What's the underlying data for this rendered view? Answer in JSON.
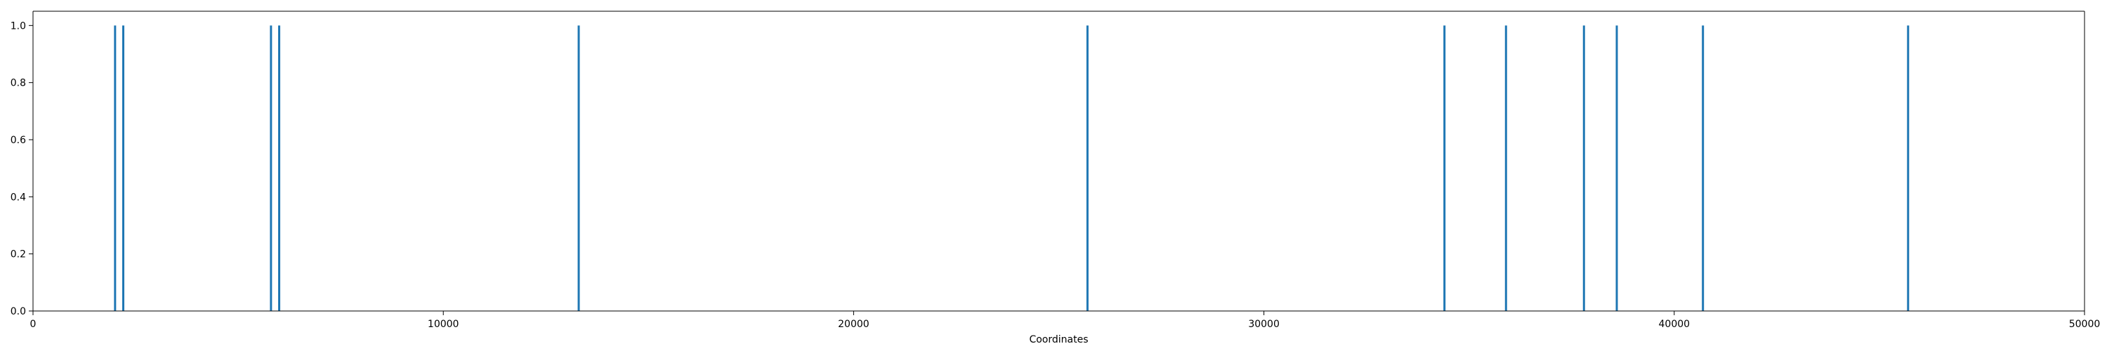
{
  "chart_data": {
    "type": "bar",
    "title": "",
    "xlabel": "Coordinates",
    "ylabel": "",
    "xlim": [
      0,
      50000
    ],
    "ylim": [
      0,
      1.05
    ],
    "grid": false,
    "x_ticks": [
      0,
      10000,
      20000,
      30000,
      40000,
      50000
    ],
    "x_tick_labels": [
      "0",
      "10000",
      "20000",
      "30000",
      "40000",
      "50000"
    ],
    "y_ticks": [
      0.0,
      0.2,
      0.4,
      0.6,
      0.8,
      1.0
    ],
    "y_tick_labels": [
      "0.0",
      "0.2",
      "0.4",
      "0.6",
      "0.8",
      "1.0"
    ],
    "bar_color": "#1f77b4",
    "points": [
      {
        "x": 2000,
        "y": 1.0
      },
      {
        "x": 2200,
        "y": 1.0
      },
      {
        "x": 5800,
        "y": 1.0
      },
      {
        "x": 6000,
        "y": 1.0
      },
      {
        "x": 13300,
        "y": 1.0
      },
      {
        "x": 25700,
        "y": 1.0
      },
      {
        "x": 34400,
        "y": 1.0
      },
      {
        "x": 35900,
        "y": 1.0
      },
      {
        "x": 37800,
        "y": 1.0
      },
      {
        "x": 38600,
        "y": 1.0
      },
      {
        "x": 40700,
        "y": 1.0
      },
      {
        "x": 45700,
        "y": 1.0
      }
    ]
  }
}
